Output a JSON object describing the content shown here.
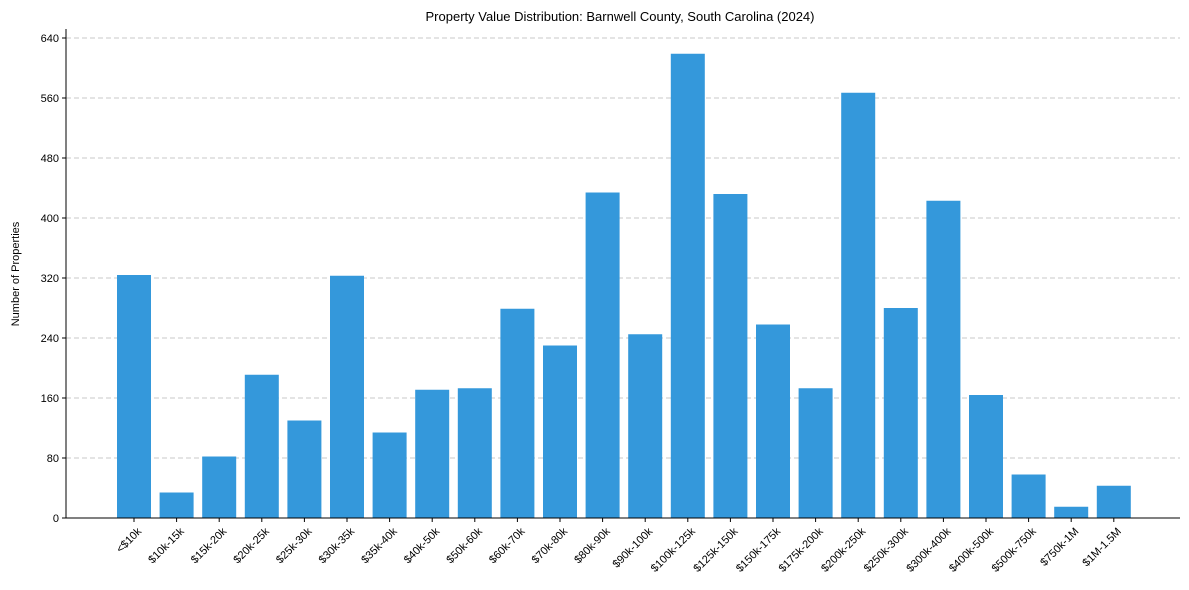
{
  "chart_data": {
    "type": "bar",
    "title": "Property Value Distribution: Barnwell County, South Carolina (2024)",
    "xlabel": "",
    "ylabel": "Number of Properties",
    "ylim": [
      0,
      640
    ],
    "yticks": [
      0,
      80,
      160,
      240,
      320,
      400,
      480,
      560,
      640
    ],
    "ytick_labels": [
      "0",
      "80",
      "160",
      "240",
      "320",
      "400",
      "480",
      "560",
      "640"
    ],
    "grid": "horizontal dashed",
    "bar_color": "#3498db",
    "categories": [
      "<$10k",
      "$10k-15k",
      "$15k-20k",
      "$20k-25k",
      "$25k-30k",
      "$30k-35k",
      "$35k-40k",
      "$40k-50k",
      "$50k-60k",
      "$60k-70k",
      "$70k-80k",
      "$80k-90k",
      "$90k-100k",
      "$100k-125k",
      "$125k-150k",
      "$150k-175k",
      "$175k-200k",
      "$200k-250k",
      "$250k-300k",
      "$300k-400k",
      "$400k-500k",
      "$500k-750k",
      "$750k-1M",
      "$1M-1.5M"
    ],
    "values": [
      324,
      34,
      82,
      191,
      130,
      323,
      114,
      171,
      173,
      279,
      230,
      434,
      245,
      619,
      432,
      258,
      173,
      567,
      280,
      423,
      164,
      58,
      15,
      43
    ]
  }
}
